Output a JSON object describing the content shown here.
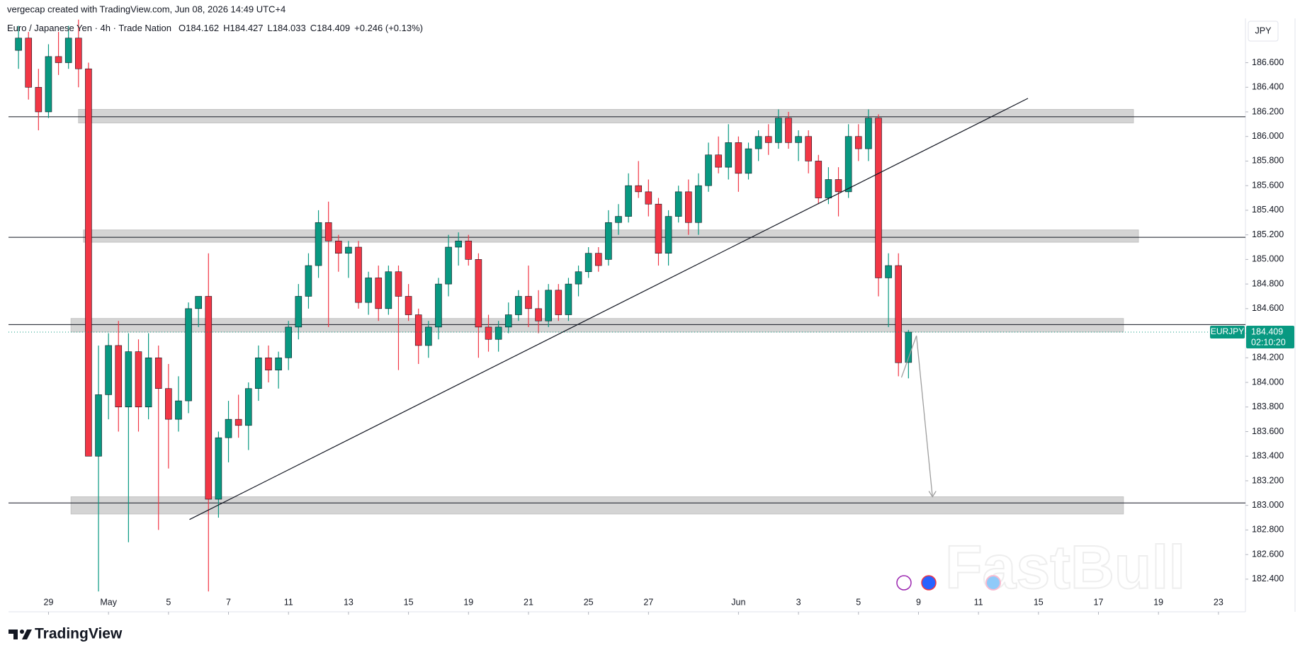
{
  "chart_data": {
    "type": "candlestick",
    "credit": "vergecap created with TradingView.com, Jun 08, 2026 14:49 UTC+4",
    "symbol_line": "Euro / Japanese Yen · 4h · Trade Nation",
    "ohlc_letters": [
      "O",
      "H",
      "L",
      "C"
    ],
    "change": "+0.246 (+0.13%)",
    "currency": "JPY",
    "symbol": "EURJPY",
    "countdown": "02:10:20",
    "brand": "TradingView",
    "watermark": "FastBull",
    "colors": {
      "up": "#089981",
      "down": "#f23645"
    },
    "x": [
      -6,
      -4,
      -2,
      0,
      2,
      4,
      6,
      8,
      10,
      12,
      14,
      16,
      18,
      20,
      22,
      24,
      26,
      28,
      30,
      32,
      34,
      36,
      38,
      40,
      42,
      44,
      46,
      48,
      50,
      52,
      54,
      56,
      58,
      60,
      62,
      64,
      66,
      68,
      70,
      72,
      74,
      76,
      78,
      80,
      82,
      84,
      86,
      88,
      90,
      92,
      94,
      96,
      98,
      100,
      102,
      104,
      106,
      108,
      110,
      112,
      114,
      116,
      118,
      120,
      122,
      124,
      126,
      128,
      130,
      132,
      134,
      136,
      138,
      140,
      142,
      144,
      146,
      148,
      150,
      152,
      154,
      156,
      158,
      160,
      162,
      164,
      166,
      168,
      170,
      172
    ],
    "open": [
      186.7,
      186.8,
      186.4,
      186.2,
      186.65,
      186.6,
      186.8,
      186.55,
      183.4,
      183.9,
      184.3,
      183.8,
      184.25,
      183.8,
      184.2,
      183.95,
      183.7,
      183.85,
      184.6,
      184.7,
      183.05,
      183.55,
      183.7,
      183.65,
      183.95,
      184.2,
      184.1,
      184.2,
      184.45,
      184.7,
      184.95,
      185.3,
      185.15,
      185.05,
      185.1,
      184.65,
      184.85,
      184.6,
      184.9,
      184.7,
      184.55,
      184.3,
      184.45,
      184.8,
      185.1,
      185.15,
      185.0,
      184.45,
      184.35,
      184.45,
      184.55,
      184.7,
      184.6,
      184.5,
      184.75,
      184.55,
      184.8,
      184.9,
      185.05,
      185.0,
      185.3,
      185.35,
      185.6,
      185.55,
      185.45,
      185.05,
      185.35,
      185.55,
      185.3,
      185.6,
      185.85,
      185.75,
      185.95,
      185.7,
      185.9,
      186.0,
      185.95,
      186.15,
      185.95,
      186.0,
      185.8,
      185.5,
      185.65,
      185.55,
      186.0,
      185.9,
      186.15,
      184.85,
      184.95,
      184.162
    ],
    "high": [
      186.9,
      186.85,
      186.55,
      186.75,
      186.85,
      186.9,
      186.95,
      186.6,
      184.3,
      184.4,
      184.5,
      184.4,
      184.35,
      184.4,
      184.3,
      184.15,
      184.05,
      184.65,
      184.7,
      185.05,
      183.6,
      183.85,
      183.9,
      184.0,
      184.3,
      184.3,
      184.25,
      184.5,
      184.8,
      185.05,
      185.4,
      185.47,
      185.2,
      185.15,
      185.15,
      184.9,
      184.95,
      184.95,
      184.95,
      184.8,
      184.6,
      184.5,
      184.85,
      185.2,
      185.22,
      185.2,
      185.05,
      184.55,
      184.5,
      184.65,
      184.75,
      184.95,
      184.75,
      184.8,
      184.8,
      184.85,
      184.95,
      185.1,
      185.1,
      185.4,
      185.45,
      185.7,
      185.8,
      185.65,
      185.5,
      185.4,
      185.6,
      185.65,
      185.7,
      185.95,
      186.0,
      186.1,
      186.0,
      185.95,
      186.05,
      186.1,
      186.22,
      186.2,
      186.05,
      186.05,
      185.85,
      185.75,
      185.75,
      186.1,
      186.1,
      186.22,
      186.18,
      185.05,
      185.05,
      184.427
    ],
    "low": [
      186.55,
      186.3,
      186.05,
      186.15,
      186.5,
      186.55,
      186.4,
      183.4,
      182.3,
      183.7,
      183.6,
      182.7,
      183.6,
      183.7,
      182.8,
      183.3,
      183.6,
      183.75,
      184.45,
      182.3,
      182.9,
      183.35,
      183.55,
      183.45,
      183.85,
      184.0,
      183.95,
      184.1,
      184.35,
      184.6,
      184.85,
      184.45,
      184.9,
      184.85,
      184.6,
      184.55,
      184.5,
      184.55,
      184.1,
      184.5,
      184.15,
      184.2,
      184.35,
      184.7,
      184.95,
      184.95,
      184.2,
      184.25,
      184.25,
      184.4,
      184.5,
      184.45,
      184.4,
      184.45,
      184.5,
      184.5,
      184.7,
      184.85,
      184.9,
      184.95,
      185.2,
      185.3,
      185.5,
      185.35,
      184.95,
      184.95,
      185.3,
      185.2,
      185.2,
      185.55,
      185.7,
      185.65,
      185.55,
      185.65,
      185.8,
      185.85,
      185.9,
      185.9,
      185.8,
      185.7,
      185.45,
      185.45,
      185.35,
      185.5,
      185.8,
      185.8,
      184.7,
      184.45,
      184.05,
      184.033
    ],
    "close": [
      186.8,
      186.4,
      186.2,
      186.65,
      186.6,
      186.8,
      186.55,
      183.4,
      183.9,
      184.3,
      183.8,
      184.25,
      183.8,
      184.2,
      183.95,
      183.7,
      183.85,
      184.6,
      184.7,
      183.05,
      183.55,
      183.7,
      183.65,
      183.95,
      184.2,
      184.1,
      184.2,
      184.45,
      184.7,
      184.95,
      185.3,
      185.15,
      185.05,
      185.1,
      184.65,
      184.85,
      184.6,
      184.9,
      184.7,
      184.55,
      184.3,
      184.45,
      184.8,
      185.1,
      185.15,
      185.0,
      184.45,
      184.35,
      184.45,
      184.55,
      184.7,
      184.6,
      184.5,
      184.75,
      184.55,
      184.8,
      184.9,
      185.05,
      184.95,
      185.3,
      185.35,
      185.6,
      185.55,
      185.45,
      185.05,
      185.35,
      185.55,
      185.3,
      185.6,
      185.85,
      185.75,
      185.95,
      185.7,
      185.9,
      186.0,
      185.95,
      186.15,
      185.95,
      186.0,
      185.8,
      185.5,
      185.65,
      185.55,
      186.0,
      185.9,
      186.15,
      184.85,
      184.95,
      184.16,
      184.409
    ],
    "xlim": [
      -8,
      239.4
    ],
    "xticks": [
      {
        "value": 0,
        "label": "29"
      },
      {
        "value": 12,
        "label": "May"
      },
      {
        "value": 24,
        "label": "5"
      },
      {
        "value": 36,
        "label": "7"
      },
      {
        "value": 48,
        "label": "11"
      },
      {
        "value": 60,
        "label": "13"
      },
      {
        "value": 72,
        "label": "15"
      },
      {
        "value": 84,
        "label": "19"
      },
      {
        "value": 96,
        "label": "21"
      },
      {
        "value": 108,
        "label": "25"
      },
      {
        "value": 120,
        "label": "27"
      },
      {
        "value": 138,
        "label": "Jun"
      },
      {
        "value": 150,
        "label": "3"
      },
      {
        "value": 162,
        "label": "5"
      },
      {
        "value": 174,
        "label": "9"
      },
      {
        "value": 186,
        "label": "11"
      },
      {
        "value": 198,
        "label": "15"
      },
      {
        "value": 210,
        "label": "17"
      },
      {
        "value": 222,
        "label": "19"
      },
      {
        "value": 234,
        "label": "23"
      }
    ],
    "ylim": [
      182.29,
      186.96
    ],
    "yticks": [
      {
        "value": 182.4,
        "label": "182.400"
      },
      {
        "value": 182.6,
        "label": "182.600"
      },
      {
        "value": 182.8,
        "label": "182.800"
      },
      {
        "value": 183.0,
        "label": "183.000"
      },
      {
        "value": 183.2,
        "label": "183.200"
      },
      {
        "value": 183.4,
        "label": "183.400"
      },
      {
        "value": 183.6,
        "label": "183.600"
      },
      {
        "value": 183.8,
        "label": "183.800"
      },
      {
        "value": 184.0,
        "label": "184.000"
      },
      {
        "value": 184.2,
        "label": "184.200"
      },
      {
        "value": 184.4,
        "label": "184.400"
      },
      {
        "value": 184.6,
        "label": "184.600"
      },
      {
        "value": 184.8,
        "label": "184.800"
      },
      {
        "value": 185.0,
        "label": "185.000"
      },
      {
        "value": 185.2,
        "label": "185.200"
      },
      {
        "value": 185.4,
        "label": "185.400"
      },
      {
        "value": 185.6,
        "label": "185.600"
      },
      {
        "value": 185.8,
        "label": "185.800"
      },
      {
        "value": 186.0,
        "label": "186.000"
      },
      {
        "value": 186.2,
        "label": "186.200"
      },
      {
        "value": 186.4,
        "label": "186.400"
      },
      {
        "value": 186.6,
        "label": "186.600"
      }
    ],
    "levels": [
      186.16,
      185.18,
      184.47,
      183.02
    ],
    "zones": [
      {
        "x": [
          6,
          217
        ],
        "y": [
          186.11,
          186.22
        ]
      },
      {
        "x": [
          7,
          218
        ],
        "y": [
          185.14,
          185.24
        ]
      },
      {
        "x": [
          4.5,
          215
        ],
        "y": [
          184.41,
          184.52
        ]
      },
      {
        "x": [
          4.5,
          215
        ],
        "y": [
          182.93,
          183.07
        ]
      }
    ],
    "trendline": {
      "x": [
        28.2,
        195.9
      ],
      "y": [
        182.885,
        186.31
      ]
    },
    "arrow": {
      "x": [
        170.6,
        173.6,
        176.8
      ],
      "y": [
        184.04,
        184.38,
        183.07
      ]
    }
  }
}
